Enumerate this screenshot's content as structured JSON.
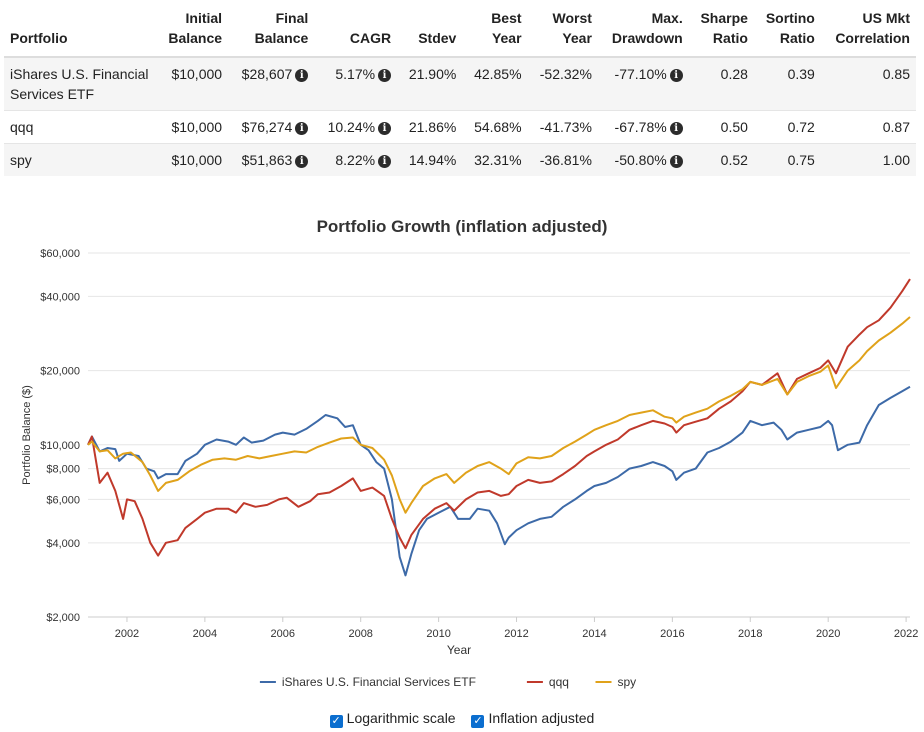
{
  "table": {
    "headers": [
      [
        "",
        "Portfolio"
      ],
      [
        "Initial",
        "Balance"
      ],
      [
        "Final",
        "Balance"
      ],
      [
        "",
        "CAGR"
      ],
      [
        "",
        "Stdev"
      ],
      [
        "Best",
        "Year"
      ],
      [
        "Worst",
        "Year"
      ],
      [
        "Max.",
        "Drawdown"
      ],
      [
        "Sharpe",
        "Ratio"
      ],
      [
        "Sortino",
        "Ratio"
      ],
      [
        "US Mkt",
        "Correlation"
      ]
    ],
    "rows": [
      {
        "portfolio": "iShares U.S. Financial Services ETF",
        "initial": "$10,000",
        "final": "$28,607",
        "cagr": "5.17%",
        "stdev": "21.90%",
        "best": "42.85%",
        "worst": "-52.32%",
        "maxdd": "-77.10%",
        "sharpe": "0.28",
        "sortino": "0.39",
        "corr": "0.85"
      },
      {
        "portfolio": "qqq",
        "initial": "$10,000",
        "final": "$76,274",
        "cagr": "10.24%",
        "stdev": "21.86%",
        "best": "54.68%",
        "worst": "-41.73%",
        "maxdd": "-67.78%",
        "sharpe": "0.50",
        "sortino": "0.72",
        "corr": "0.87"
      },
      {
        "portfolio": "spy",
        "initial": "$10,000",
        "final": "$51,863",
        "cagr": "8.22%",
        "stdev": "14.94%",
        "best": "32.31%",
        "worst": "-36.81%",
        "maxdd": "-50.80%",
        "sharpe": "0.52",
        "sortino": "0.75",
        "corr": "1.00"
      }
    ],
    "info_icon": "info-circle-icon"
  },
  "chart_data": {
    "type": "line",
    "title": "Portfolio Growth (inflation adjusted)",
    "xlabel": "Year",
    "ylabel": "Portfolio Balance ($)",
    "yscale": "log",
    "ylim": [
      2000,
      60000
    ],
    "xlim": [
      2001.0,
      2022.1
    ],
    "x_ticks": [
      "2002",
      "2004",
      "2006",
      "2008",
      "2010",
      "2012",
      "2014",
      "2016",
      "2018",
      "2020",
      "2022"
    ],
    "y_ticks": [
      {
        "value": 2000,
        "label": "$2,000"
      },
      {
        "value": 4000,
        "label": "$4,000"
      },
      {
        "value": 6000,
        "label": "$6,000"
      },
      {
        "value": 8000,
        "label": "$8,000"
      },
      {
        "value": 10000,
        "label": "$10,000"
      },
      {
        "value": 20000,
        "label": "$20,000"
      },
      {
        "value": 40000,
        "label": "$40,000"
      },
      {
        "value": 60000,
        "label": "$60,000"
      }
    ],
    "grid": true,
    "legend": "bottom",
    "series": [
      {
        "name": "iShares U.S. Financial Services ETF",
        "color": "#3d6aa8",
        "points": [
          [
            2001.0,
            10000
          ],
          [
            2001.1,
            10800
          ],
          [
            2001.3,
            9400
          ],
          [
            2001.5,
            9700
          ],
          [
            2001.7,
            9600
          ],
          [
            2001.8,
            8600
          ],
          [
            2002.0,
            9200
          ],
          [
            2002.3,
            9000
          ],
          [
            2002.5,
            8000
          ],
          [
            2002.7,
            7800
          ],
          [
            2002.8,
            7300
          ],
          [
            2003.0,
            7600
          ],
          [
            2003.3,
            7600
          ],
          [
            2003.5,
            8600
          ],
          [
            2003.8,
            9200
          ],
          [
            2004.0,
            10000
          ],
          [
            2004.3,
            10500
          ],
          [
            2004.6,
            10300
          ],
          [
            2004.8,
            10000
          ],
          [
            2005.0,
            10700
          ],
          [
            2005.2,
            10200
          ],
          [
            2005.5,
            10400
          ],
          [
            2005.8,
            11000
          ],
          [
            2006.0,
            11200
          ],
          [
            2006.3,
            11000
          ],
          [
            2006.6,
            11600
          ],
          [
            2006.9,
            12500
          ],
          [
            2007.1,
            13200
          ],
          [
            2007.4,
            12800
          ],
          [
            2007.6,
            11800
          ],
          [
            2007.8,
            12000
          ],
          [
            2008.0,
            10000
          ],
          [
            2008.2,
            9500
          ],
          [
            2008.4,
            8500
          ],
          [
            2008.6,
            8000
          ],
          [
            2008.8,
            6000
          ],
          [
            2009.0,
            3500
          ],
          [
            2009.15,
            2950
          ],
          [
            2009.3,
            3600
          ],
          [
            2009.5,
            4500
          ],
          [
            2009.7,
            5000
          ],
          [
            2010.0,
            5300
          ],
          [
            2010.3,
            5600
          ],
          [
            2010.5,
            5000
          ],
          [
            2010.8,
            5000
          ],
          [
            2011.0,
            5500
          ],
          [
            2011.3,
            5400
          ],
          [
            2011.5,
            4800
          ],
          [
            2011.7,
            3950
          ],
          [
            2011.8,
            4200
          ],
          [
            2012.0,
            4500
          ],
          [
            2012.3,
            4800
          ],
          [
            2012.6,
            5000
          ],
          [
            2012.9,
            5100
          ],
          [
            2013.2,
            5600
          ],
          [
            2013.5,
            6000
          ],
          [
            2013.8,
            6500
          ],
          [
            2014.0,
            6800
          ],
          [
            2014.3,
            7000
          ],
          [
            2014.6,
            7400
          ],
          [
            2014.9,
            8000
          ],
          [
            2015.2,
            8200
          ],
          [
            2015.5,
            8500
          ],
          [
            2015.8,
            8200
          ],
          [
            2016.0,
            7800
          ],
          [
            2016.1,
            7200
          ],
          [
            2016.3,
            7700
          ],
          [
            2016.6,
            8000
          ],
          [
            2016.9,
            9300
          ],
          [
            2017.2,
            9700
          ],
          [
            2017.5,
            10300
          ],
          [
            2017.8,
            11200
          ],
          [
            2018.0,
            12500
          ],
          [
            2018.3,
            12000
          ],
          [
            2018.6,
            12300
          ],
          [
            2018.8,
            11500
          ],
          [
            2018.95,
            10500
          ],
          [
            2019.2,
            11200
          ],
          [
            2019.5,
            11500
          ],
          [
            2019.8,
            11800
          ],
          [
            2020.0,
            12500
          ],
          [
            2020.1,
            12000
          ],
          [
            2020.25,
            9500
          ],
          [
            2020.5,
            10000
          ],
          [
            2020.8,
            10200
          ],
          [
            2021.0,
            12000
          ],
          [
            2021.3,
            14500
          ],
          [
            2021.6,
            15500
          ],
          [
            2021.9,
            16500
          ],
          [
            2022.1,
            17200
          ]
        ]
      },
      {
        "name": "qqq",
        "color": "#c0392b",
        "points": [
          [
            2001.0,
            10000
          ],
          [
            2001.1,
            10800
          ],
          [
            2001.3,
            7000
          ],
          [
            2001.5,
            7700
          ],
          [
            2001.7,
            6500
          ],
          [
            2001.9,
            5000
          ],
          [
            2002.0,
            6000
          ],
          [
            2002.2,
            5900
          ],
          [
            2002.4,
            5000
          ],
          [
            2002.6,
            4000
          ],
          [
            2002.8,
            3550
          ],
          [
            2003.0,
            4000
          ],
          [
            2003.3,
            4100
          ],
          [
            2003.5,
            4600
          ],
          [
            2003.8,
            5000
          ],
          [
            2004.0,
            5300
          ],
          [
            2004.3,
            5500
          ],
          [
            2004.6,
            5500
          ],
          [
            2004.8,
            5300
          ],
          [
            2005.0,
            5800
          ],
          [
            2005.3,
            5600
          ],
          [
            2005.6,
            5700
          ],
          [
            2005.9,
            6000
          ],
          [
            2006.1,
            6100
          ],
          [
            2006.4,
            5600
          ],
          [
            2006.7,
            5900
          ],
          [
            2006.9,
            6300
          ],
          [
            2007.2,
            6400
          ],
          [
            2007.5,
            6800
          ],
          [
            2007.8,
            7300
          ],
          [
            2008.0,
            6500
          ],
          [
            2008.3,
            6700
          ],
          [
            2008.6,
            6200
          ],
          [
            2008.8,
            5000
          ],
          [
            2009.0,
            4200
          ],
          [
            2009.15,
            3800
          ],
          [
            2009.3,
            4300
          ],
          [
            2009.6,
            5000
          ],
          [
            2009.9,
            5500
          ],
          [
            2010.2,
            5800
          ],
          [
            2010.4,
            5400
          ],
          [
            2010.7,
            6000
          ],
          [
            2011.0,
            6400
          ],
          [
            2011.3,
            6500
          ],
          [
            2011.6,
            6200
          ],
          [
            2011.8,
            6300
          ],
          [
            2012.0,
            6800
          ],
          [
            2012.3,
            7200
          ],
          [
            2012.6,
            7000
          ],
          [
            2012.9,
            7100
          ],
          [
            2013.2,
            7600
          ],
          [
            2013.5,
            8200
          ],
          [
            2013.8,
            9000
          ],
          [
            2014.0,
            9400
          ],
          [
            2014.3,
            10000
          ],
          [
            2014.6,
            10500
          ],
          [
            2014.9,
            11500
          ],
          [
            2015.2,
            12000
          ],
          [
            2015.5,
            12500
          ],
          [
            2015.8,
            12200
          ],
          [
            2016.0,
            11800
          ],
          [
            2016.1,
            11200
          ],
          [
            2016.3,
            12000
          ],
          [
            2016.6,
            12400
          ],
          [
            2016.9,
            12800
          ],
          [
            2017.2,
            14000
          ],
          [
            2017.5,
            15000
          ],
          [
            2017.8,
            16500
          ],
          [
            2018.0,
            18000
          ],
          [
            2018.3,
            17500
          ],
          [
            2018.7,
            19500
          ],
          [
            2018.95,
            16000
          ],
          [
            2019.2,
            18500
          ],
          [
            2019.5,
            19500
          ],
          [
            2019.8,
            20500
          ],
          [
            2020.0,
            22000
          ],
          [
            2020.2,
            19500
          ],
          [
            2020.5,
            25000
          ],
          [
            2020.8,
            28000
          ],
          [
            2021.0,
            30000
          ],
          [
            2021.3,
            32000
          ],
          [
            2021.6,
            36000
          ],
          [
            2021.9,
            42000
          ],
          [
            2022.1,
            47000
          ]
        ]
      },
      {
        "name": "spy",
        "color": "#e0a21a",
        "points": [
          [
            2001.0,
            10000
          ],
          [
            2001.1,
            10300
          ],
          [
            2001.3,
            9400
          ],
          [
            2001.5,
            9500
          ],
          [
            2001.7,
            8800
          ],
          [
            2001.9,
            9200
          ],
          [
            2002.1,
            9300
          ],
          [
            2002.4,
            8500
          ],
          [
            2002.6,
            7500
          ],
          [
            2002.8,
            6500
          ],
          [
            2003.0,
            7000
          ],
          [
            2003.3,
            7200
          ],
          [
            2003.6,
            7800
          ],
          [
            2003.9,
            8300
          ],
          [
            2004.2,
            8700
          ],
          [
            2004.5,
            8800
          ],
          [
            2004.8,
            8700
          ],
          [
            2005.1,
            9000
          ],
          [
            2005.4,
            8800
          ],
          [
            2005.7,
            9000
          ],
          [
            2006.0,
            9200
          ],
          [
            2006.3,
            9400
          ],
          [
            2006.6,
            9300
          ],
          [
            2006.9,
            9800
          ],
          [
            2007.2,
            10200
          ],
          [
            2007.5,
            10600
          ],
          [
            2007.8,
            10700
          ],
          [
            2008.0,
            10000
          ],
          [
            2008.3,
            9700
          ],
          [
            2008.6,
            8700
          ],
          [
            2008.8,
            7500
          ],
          [
            2009.0,
            6000
          ],
          [
            2009.15,
            5300
          ],
          [
            2009.3,
            5800
          ],
          [
            2009.6,
            6800
          ],
          [
            2009.9,
            7300
          ],
          [
            2010.2,
            7600
          ],
          [
            2010.4,
            7000
          ],
          [
            2010.7,
            7700
          ],
          [
            2011.0,
            8200
          ],
          [
            2011.3,
            8500
          ],
          [
            2011.6,
            8000
          ],
          [
            2011.8,
            7600
          ],
          [
            2012.0,
            8400
          ],
          [
            2012.3,
            8900
          ],
          [
            2012.6,
            8800
          ],
          [
            2012.9,
            9000
          ],
          [
            2013.2,
            9700
          ],
          [
            2013.5,
            10300
          ],
          [
            2013.8,
            11000
          ],
          [
            2014.0,
            11500
          ],
          [
            2014.3,
            12000
          ],
          [
            2014.6,
            12500
          ],
          [
            2014.9,
            13200
          ],
          [
            2015.2,
            13500
          ],
          [
            2015.5,
            13800
          ],
          [
            2015.8,
            13000
          ],
          [
            2016.0,
            12800
          ],
          [
            2016.1,
            12300
          ],
          [
            2016.3,
            13000
          ],
          [
            2016.6,
            13500
          ],
          [
            2016.9,
            14000
          ],
          [
            2017.2,
            15000
          ],
          [
            2017.5,
            15800
          ],
          [
            2017.8,
            16800
          ],
          [
            2018.0,
            18000
          ],
          [
            2018.3,
            17500
          ],
          [
            2018.7,
            18500
          ],
          [
            2018.95,
            16000
          ],
          [
            2019.2,
            18000
          ],
          [
            2019.5,
            19000
          ],
          [
            2019.8,
            19800
          ],
          [
            2020.0,
            21000
          ],
          [
            2020.2,
            17000
          ],
          [
            2020.5,
            20000
          ],
          [
            2020.8,
            22000
          ],
          [
            2021.0,
            24000
          ],
          [
            2021.3,
            26500
          ],
          [
            2021.6,
            28500
          ],
          [
            2021.9,
            31000
          ],
          [
            2022.1,
            33000
          ]
        ]
      }
    ]
  },
  "controls": {
    "log_label": "Logarithmic scale",
    "log_checked": true,
    "inflation_label": "Inflation adjusted",
    "inflation_checked": true,
    "check_icon": "checkmark-icon"
  }
}
